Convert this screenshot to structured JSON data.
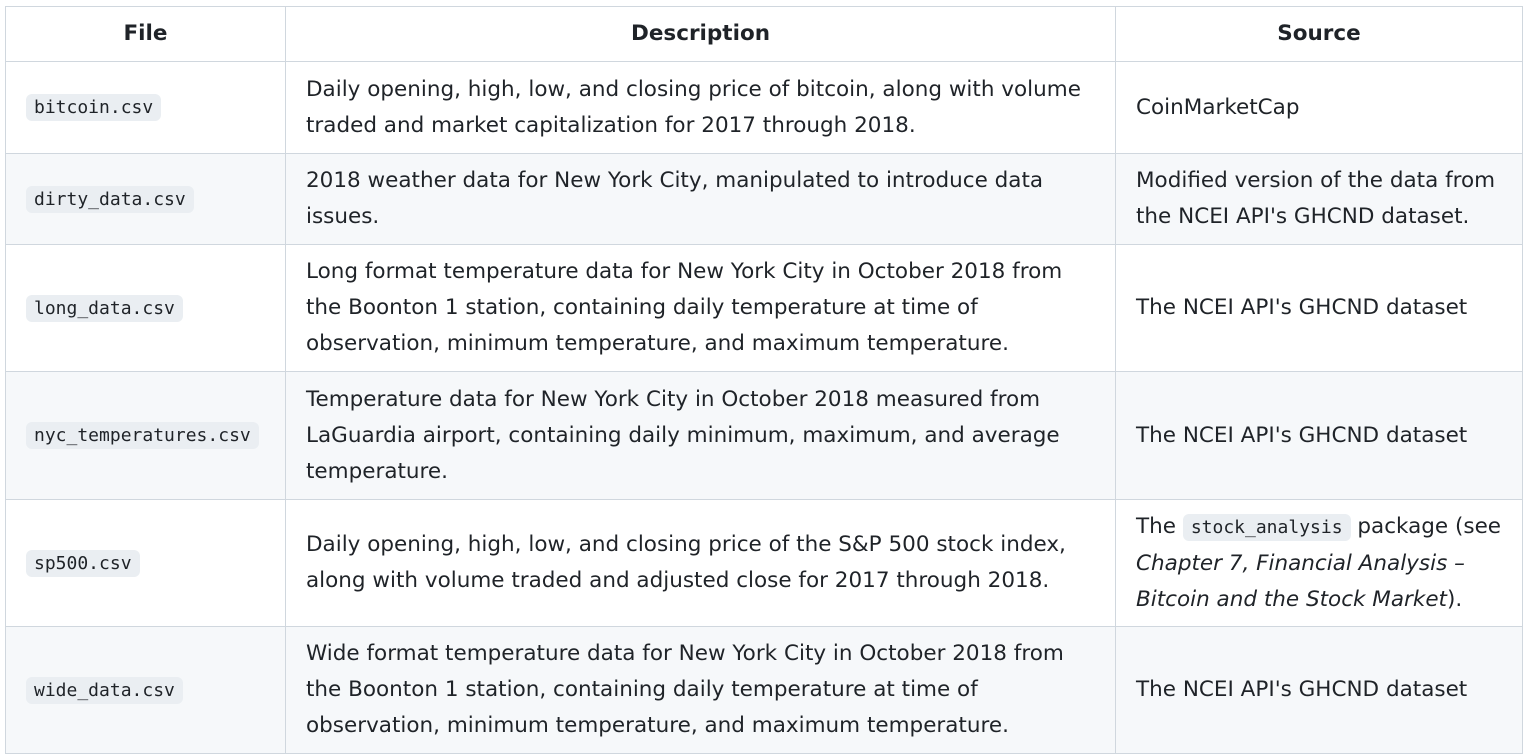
{
  "table": {
    "headers": {
      "file": "File",
      "description": "Description",
      "source": "Source"
    },
    "rows": [
      {
        "file": "bitcoin.csv",
        "description": "Daily opening, high, low, and closing price of bitcoin, along with volume traded and market capitalization for 2017 through 2018.",
        "source": "CoinMarketCap"
      },
      {
        "file": "dirty_data.csv",
        "description": "2018 weather data for New York City, manipulated to introduce data issues.",
        "source": "Modified version of the data from the NCEI API's GHCND dataset."
      },
      {
        "file": "long_data.csv",
        "description": "Long format temperature data for New York City in October 2018 from the Boonton 1 station, containing daily temperature at time of observation, minimum temperature, and maximum temperature.",
        "source": "The NCEI API's GHCND dataset"
      },
      {
        "file": "nyc_temperatures.csv",
        "description": "Temperature data for New York City in October 2018 measured from LaGuardia airport, containing daily minimum, maximum, and average temperature.",
        "source": "The NCEI API's GHCND dataset"
      },
      {
        "file": "sp500.csv",
        "description": "Daily opening, high, low, and closing price of the S&P 500 stock index, along with volume traded and adjusted close for 2017 through 2018.",
        "source_prefix": "The ",
        "source_code": "stock_analysis",
        "source_middle": " package (see ",
        "source_ref": "Chapter 7, Financial Analysis – Bitcoin and the Stock Market",
        "source_suffix": ")."
      },
      {
        "file": "wide_data.csv",
        "description": "Wide format temperature data for New York City in October 2018 from the Boonton 1 station, containing daily temperature at time of observation, minimum temperature, and maximum temperature.",
        "source": "The NCEI API's GHCND dataset"
      }
    ]
  }
}
